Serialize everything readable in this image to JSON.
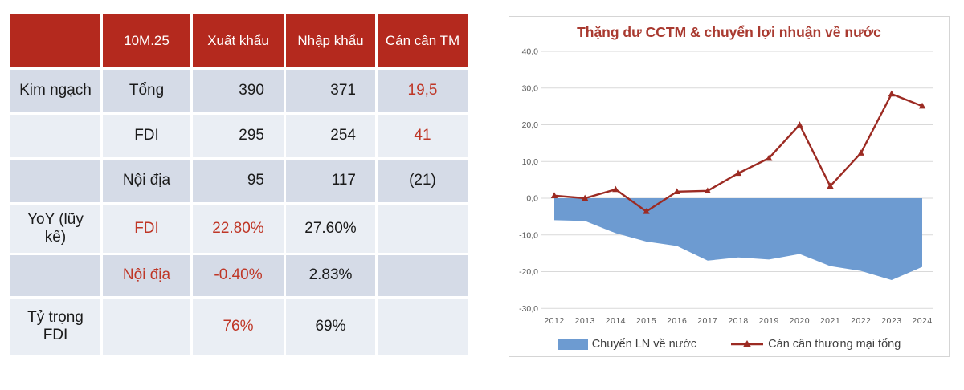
{
  "palette": {
    "red_header": "#B4291E",
    "red_text": "#BF3626",
    "red_title": "#A93A30",
    "red_line": "#9C2B23",
    "blue_area": "#6D9BD1",
    "row_dark": "#D5DBE7",
    "row_light": "#EAEEF4",
    "axis_gray": "#595959",
    "grid_gray": "#D9D9D9",
    "card_border": "#D5D5D5",
    "text_dark": "#1A1A1A"
  },
  "table": {
    "headers": [
      "",
      "10M.25",
      "Xuất khẩu",
      "Nhập khẩu",
      "Cán cân TM"
    ],
    "rows": [
      {
        "cells": [
          {
            "t": "Kim ngạch"
          },
          {
            "t": "Tổng"
          },
          {
            "t": "390",
            "a": "r"
          },
          {
            "t": "371",
            "a": "r"
          },
          {
            "t": "19,5",
            "red": true
          }
        ]
      },
      {
        "cells": [
          {
            "t": ""
          },
          {
            "t": "FDI"
          },
          {
            "t": "295",
            "a": "r"
          },
          {
            "t": "254",
            "a": "r"
          },
          {
            "t": "41",
            "red": true
          }
        ]
      },
      {
        "cells": [
          {
            "t": ""
          },
          {
            "t": "Nội địa"
          },
          {
            "t": "95",
            "a": "r"
          },
          {
            "t": "117",
            "a": "r"
          },
          {
            "t": "(21)"
          }
        ]
      },
      {
        "cells": [
          {
            "t": "YoY (lũy kế)"
          },
          {
            "t": "FDI",
            "red": true
          },
          {
            "t": "22.80%",
            "red": true
          },
          {
            "t": "27.60%"
          },
          {
            "t": ""
          }
        ]
      },
      {
        "cells": [
          {
            "t": ""
          },
          {
            "t": "Nội địa",
            "red": true
          },
          {
            "t": "-0.40%",
            "red": true
          },
          {
            "t": "2.83%"
          },
          {
            "t": ""
          }
        ]
      },
      {
        "cells": [
          {
            "t": "Tỷ trọng FDI"
          },
          {
            "t": ""
          },
          {
            "t": "76%",
            "red": true
          },
          {
            "t": "69%"
          },
          {
            "t": ""
          }
        ]
      }
    ]
  },
  "chart_data": {
    "type": "combo",
    "title": "Thặng dư CCTM & chuyển lợi nhuận về nước",
    "x": [
      "2012",
      "2013",
      "2014",
      "2015",
      "2016",
      "2017",
      "2018",
      "2019",
      "2020",
      "2021",
      "2022",
      "2023",
      "2024"
    ],
    "series": [
      {
        "name": "Chuyển LN về nước",
        "type": "area",
        "color": "#6D9BD1",
        "values": [
          -6.0,
          -6.2,
          -9.5,
          -11.8,
          -13.0,
          -17.0,
          -16.1,
          -16.7,
          -15.2,
          -18.5,
          -19.8,
          -22.3,
          -18.7
        ]
      },
      {
        "name": "Cán cân thương mại tổng",
        "type": "line",
        "marker": "triangle",
        "color": "#9C2B23",
        "values": [
          0.7,
          0.0,
          2.4,
          -3.6,
          1.8,
          2.0,
          6.8,
          10.9,
          20.0,
          3.3,
          12.3,
          28.4,
          25.1
        ]
      }
    ],
    "ylim": [
      -30,
      40
    ],
    "yticks": [
      40,
      30,
      20,
      10,
      0,
      -10,
      -20,
      -30
    ],
    "ytick_labels": [
      "40,0",
      "30,0",
      "20,0",
      "10,0",
      "0,0",
      "-10,0",
      "-20,0",
      "-30,0"
    ],
    "grid": true,
    "legend_position": "bottom"
  }
}
